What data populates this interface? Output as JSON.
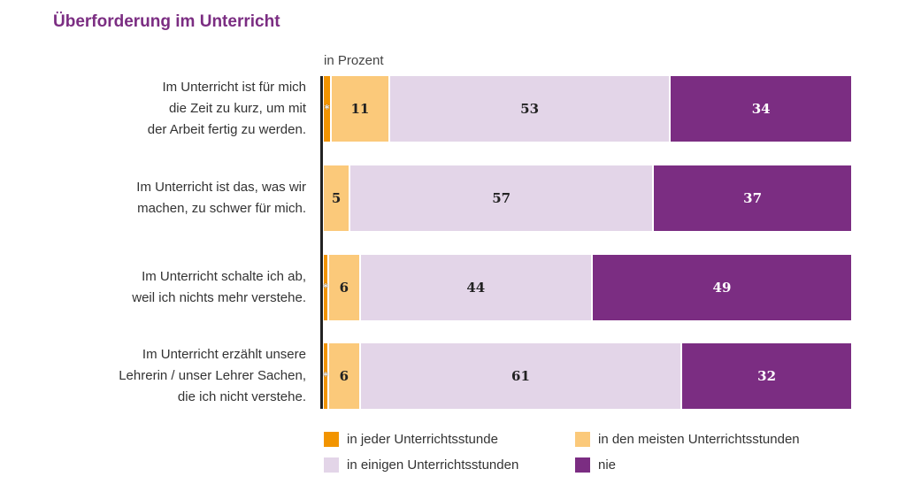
{
  "title": "Überforderung im Unterricht",
  "chart_data": {
    "type": "bar",
    "orientation": "horizontal",
    "stacked": true,
    "unit_label": "in Prozent",
    "categories": [
      "Im Unterricht ist für mich die Zeit zu kurz, um mit der Arbeit fertig zu werden.",
      "Im Unterricht ist das, was wir machen, zu schwer für mich.",
      "Im Unterricht schalte ich ab, weil ich nichts mehr verstehe.",
      "Im Unterricht erzählt unsere Lehrerin / unser Lehrer Sachen, die ich nicht verstehe."
    ],
    "category_lines": [
      [
        "Im Unterricht ist für mich",
        "die Zeit zu kurz, um mit",
        "der Arbeit fertig zu werden."
      ],
      [
        "Im Unterricht ist das, was wir",
        "machen, zu schwer für mich."
      ],
      [
        "Im Unterricht schalte ich ab,",
        "weil ich nichts mehr verstehe."
      ],
      [
        "Im Unterricht erzählt unsere",
        "Lehrerin / unser Lehrer Sachen,",
        "die ich nicht verstehe."
      ]
    ],
    "series": [
      {
        "name": "in jeder Unterrichtsstunde",
        "color": "#f29400",
        "values": [
          1.5,
          0,
          1,
          1
        ],
        "labels": [
          "*",
          "",
          "*",
          "*"
        ]
      },
      {
        "name": "in den meisten Unterrichtsstunden",
        "color": "#fbc97a",
        "values": [
          11,
          5,
          6,
          6
        ],
        "labels": [
          "11",
          "5",
          "6",
          "6"
        ]
      },
      {
        "name": "in einigen Unterrichtsstunden",
        "color": "#e3d5e8",
        "values": [
          53,
          57,
          44,
          61
        ],
        "labels": [
          "53",
          "57",
          "44",
          "61"
        ]
      },
      {
        "name": "nie",
        "color": "#7b2d82",
        "values": [
          34,
          37,
          49,
          32
        ],
        "labels": [
          "34",
          "37",
          "49",
          "32"
        ]
      }
    ],
    "xlim": [
      0,
      100
    ],
    "legend_position": "bottom",
    "grid": false
  }
}
